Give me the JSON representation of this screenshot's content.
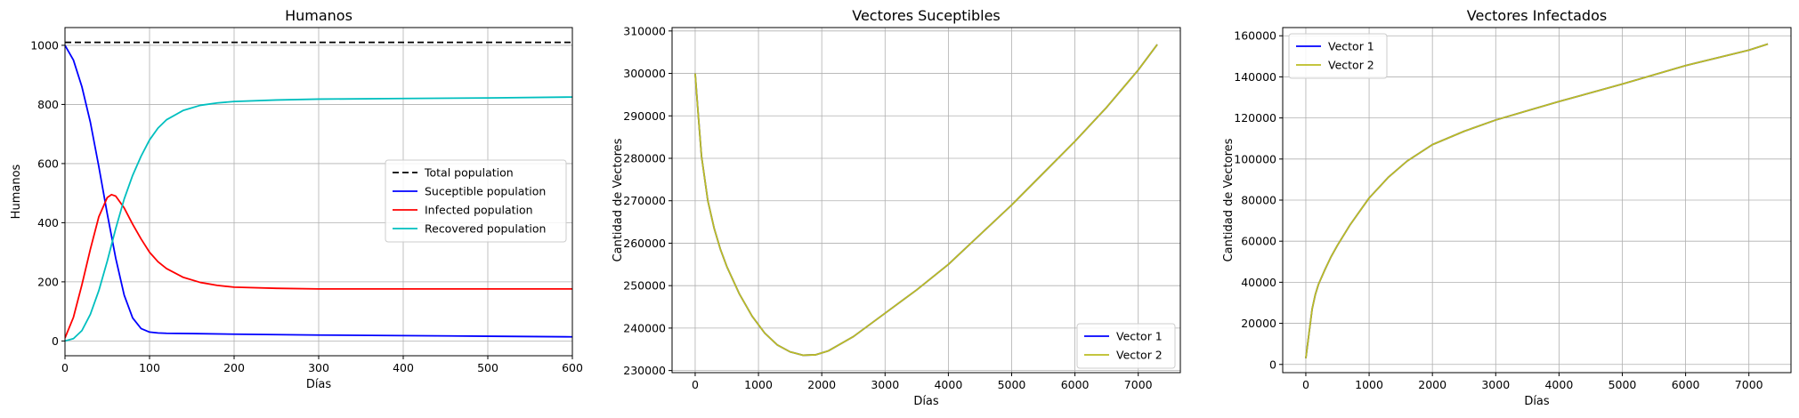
{
  "chart_data": [
    {
      "type": "line",
      "title": "Humanos",
      "xlabel": "Días",
      "ylabel": "Humanos",
      "xlim": [
        0,
        600
      ],
      "ylim": [
        -50,
        1060
      ],
      "xticks": [
        0,
        100,
        200,
        300,
        400,
        500,
        600
      ],
      "yticks": [
        0,
        200,
        400,
        600,
        800,
        1000
      ],
      "grid": true,
      "legend_position": "center-right",
      "series": [
        {
          "name": "Total population",
          "color": "#000000",
          "dash": true,
          "x": [
            0,
            600
          ],
          "y": [
            1010,
            1010
          ]
        },
        {
          "name": "Suceptible population",
          "color": "#0000ff",
          "x": [
            0,
            10,
            20,
            30,
            40,
            50,
            60,
            70,
            80,
            90,
            100,
            110,
            120,
            150,
            200,
            300,
            400,
            500,
            600
          ],
          "y": [
            1000,
            950,
            860,
            740,
            590,
            430,
            280,
            155,
            78,
            42,
            30,
            27,
            26,
            25,
            23,
            20,
            18,
            16,
            14
          ]
        },
        {
          "name": "Infected population",
          "color": "#ff0000",
          "x": [
            0,
            10,
            20,
            30,
            40,
            50,
            55,
            60,
            70,
            80,
            90,
            100,
            110,
            120,
            140,
            160,
            180,
            200,
            250,
            300,
            400,
            500,
            600
          ],
          "y": [
            10,
            80,
            190,
            310,
            420,
            485,
            495,
            490,
            450,
            395,
            345,
            300,
            268,
            245,
            215,
            198,
            188,
            182,
            178,
            176,
            176,
            176,
            176
          ]
        },
        {
          "name": "Recovered population",
          "color": "#00bfbf",
          "x": [
            0,
            10,
            20,
            30,
            40,
            50,
            60,
            70,
            80,
            90,
            100,
            110,
            120,
            140,
            160,
            180,
            200,
            250,
            300,
            400,
            500,
            600
          ],
          "y": [
            0,
            8,
            35,
            90,
            170,
            270,
            380,
            480,
            560,
            625,
            680,
            720,
            748,
            780,
            797,
            805,
            810,
            815,
            818,
            820,
            822,
            825
          ]
        }
      ]
    },
    {
      "type": "line",
      "title": "Vectores Suceptibles",
      "xlabel": "Días",
      "ylabel": "Cantidad de Vectores",
      "xlim": [
        -365,
        7665
      ],
      "ylim": [
        229500,
        310800
      ],
      "xticks": [
        0,
        1000,
        2000,
        3000,
        4000,
        5000,
        6000,
        7000
      ],
      "yticks": [
        230000,
        240000,
        250000,
        260000,
        270000,
        280000,
        290000,
        300000,
        310000
      ],
      "grid": true,
      "legend_position": "lower right",
      "series": [
        {
          "name": "Vector 1",
          "color": "#0000ff",
          "x": [
            0,
            50,
            100,
            200,
            300,
            400,
            500,
            700,
            900,
            1100,
            1300,
            1500,
            1700,
            1900,
            2100,
            2500,
            3000,
            3500,
            4000,
            4500,
            5000,
            5500,
            6000,
            6500,
            7000,
            7300
          ],
          "y": [
            300000,
            290000,
            280500,
            270000,
            263500,
            258500,
            254500,
            248000,
            242800,
            238800,
            236000,
            234400,
            233600,
            233700,
            234600,
            238000,
            243500,
            249000,
            255000,
            262000,
            269000,
            276500,
            284000,
            292000,
            300800,
            306800
          ]
        },
        {
          "name": "Vector 2",
          "color": "#bcbd22",
          "x": [
            0,
            50,
            100,
            200,
            300,
            400,
            500,
            700,
            900,
            1100,
            1300,
            1500,
            1700,
            1900,
            2100,
            2500,
            3000,
            3500,
            4000,
            4500,
            5000,
            5500,
            6000,
            6500,
            7000,
            7300
          ],
          "y": [
            300000,
            290000,
            280500,
            270000,
            263500,
            258500,
            254500,
            248000,
            242800,
            238800,
            236000,
            234400,
            233600,
            233700,
            234600,
            238000,
            243500,
            249000,
            255000,
            262000,
            269000,
            276500,
            284000,
            292000,
            300800,
            306800
          ]
        }
      ]
    },
    {
      "type": "line",
      "title": "Vectores Infectados",
      "xlabel": "Días",
      "ylabel": "Cantidad de Vectores",
      "xlim": [
        -365,
        7665
      ],
      "ylim": [
        -4000,
        164000
      ],
      "xticks": [
        0,
        1000,
        2000,
        3000,
        4000,
        5000,
        6000,
        7000
      ],
      "yticks": [
        0,
        20000,
        40000,
        60000,
        80000,
        100000,
        120000,
        140000,
        160000
      ],
      "grid": true,
      "legend_position": "upper left",
      "series": [
        {
          "name": "Vector 1",
          "color": "#0000ff",
          "x": [
            0,
            50,
            100,
            150,
            200,
            300,
            400,
            500,
            700,
            1000,
            1300,
            1600,
            2000,
            2500,
            3000,
            3500,
            4000,
            5000,
            6000,
            7000,
            7300
          ],
          "y": [
            3000,
            15000,
            27000,
            34000,
            39000,
            46000,
            52500,
            58000,
            68000,
            81000,
            91000,
            99000,
            107000,
            113500,
            119000,
            123500,
            128000,
            136500,
            145500,
            153000,
            156000
          ]
        },
        {
          "name": "Vector 2",
          "color": "#bcbd22",
          "x": [
            0,
            50,
            100,
            150,
            200,
            300,
            400,
            500,
            700,
            1000,
            1300,
            1600,
            2000,
            2500,
            3000,
            3500,
            4000,
            5000,
            6000,
            7000,
            7300
          ],
          "y": [
            3000,
            15000,
            27000,
            34000,
            39000,
            46000,
            52500,
            58000,
            68000,
            81000,
            91000,
            99000,
            107000,
            113500,
            119000,
            123500,
            128000,
            136500,
            145500,
            153000,
            156000
          ]
        }
      ]
    }
  ]
}
